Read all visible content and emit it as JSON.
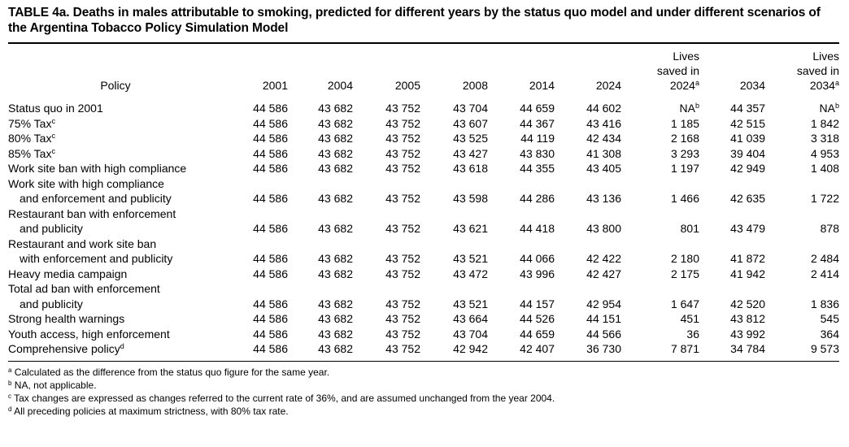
{
  "title": {
    "line1": "TABLE 4a. Deaths in males attributable to smoking, predicted for different years by the status quo model and under different scenarios of",
    "line2": "the Argentina Tobacco Policy Simulation Model"
  },
  "columns": {
    "policy": "Policy",
    "y2001": "2001",
    "y2004": "2004",
    "y2005": "2005",
    "y2008": "2008",
    "y2014": "2014",
    "y2024": "2024",
    "saved2024_line1": "Lives",
    "saved2024_line2": "saved in",
    "saved2024_line3": "2024",
    "saved2024_sup": "a",
    "y2034": "2034",
    "saved2034_line1": "Lives",
    "saved2034_line2": "saved in",
    "saved2034_line3": "2034",
    "saved2034_sup": "a"
  },
  "rows": [
    {
      "policy": [
        "Status quo in 2001"
      ],
      "sup": "",
      "v": [
        "44 586",
        "43 682",
        "43 752",
        "43 704",
        "44 659",
        "44 602",
        "NA",
        "44 357",
        "NA"
      ],
      "na_sup": "b"
    },
    {
      "policy": [
        "75% Tax"
      ],
      "sup": "c",
      "v": [
        "44 586",
        "43 682",
        "43 752",
        "43 607",
        "44 367",
        "43 416",
        "1 185",
        "42 515",
        "1 842"
      ]
    },
    {
      "policy": [
        "80% Tax"
      ],
      "sup": "c",
      "v": [
        "44 586",
        "43 682",
        "43 752",
        "43 525",
        "44 119",
        "42 434",
        "2 168",
        "41 039",
        "3 318"
      ]
    },
    {
      "policy": [
        "85% Tax"
      ],
      "sup": "c",
      "v": [
        "44 586",
        "43 682",
        "43 752",
        "43 427",
        "43 830",
        "41 308",
        "3 293",
        "39 404",
        "4 953"
      ]
    },
    {
      "policy": [
        "Work site ban with high compliance"
      ],
      "sup": "",
      "v": [
        "44 586",
        "43 682",
        "43 752",
        "43 618",
        "44 355",
        "43 405",
        "1 197",
        "42 949",
        "1 408"
      ]
    },
    {
      "policy": [
        "Work site with high compliance",
        "and enforcement and publicity"
      ],
      "sup": "",
      "v": [
        "44 586",
        "43 682",
        "43 752",
        "43 598",
        "44 286",
        "43 136",
        "1 466",
        "42 635",
        "1 722"
      ]
    },
    {
      "policy": [
        "Restaurant ban with enforcement",
        "and publicity"
      ],
      "sup": "",
      "v": [
        "44 586",
        "43 682",
        "43 752",
        "43 621",
        "44 418",
        "43 800",
        "801",
        "43 479",
        "878"
      ]
    },
    {
      "policy": [
        "Restaurant and work site ban",
        "with enforcement and publicity"
      ],
      "sup": "",
      "v": [
        "44 586",
        "43 682",
        "43 752",
        "43 521",
        "44 066",
        "42 422",
        "2 180",
        "41 872",
        "2 484"
      ]
    },
    {
      "policy": [
        "Heavy media campaign"
      ],
      "sup": "",
      "v": [
        "44 586",
        "43 682",
        "43 752",
        "43 472",
        "43 996",
        "42 427",
        "2 175",
        "41 942",
        "2 414"
      ]
    },
    {
      "policy": [
        "Total ad ban with enforcement",
        "and publicity"
      ],
      "sup": "",
      "v": [
        "44 586",
        "43 682",
        "43 752",
        "43 521",
        "44 157",
        "42 954",
        "1 647",
        "42 520",
        "1 836"
      ]
    },
    {
      "policy": [
        "Strong health warnings"
      ],
      "sup": "",
      "v": [
        "44 586",
        "43 682",
        "43 752",
        "43 664",
        "44 526",
        "44 151",
        "451",
        "43 812",
        "545"
      ]
    },
    {
      "policy": [
        "Youth access, high enforcement"
      ],
      "sup": "",
      "v": [
        "44 586",
        "43 682",
        "43 752",
        "43 704",
        "44 659",
        "44 566",
        "36",
        "43 992",
        "364"
      ]
    },
    {
      "policy": [
        "Comprehensive policy"
      ],
      "sup": "d",
      "v": [
        "44 586",
        "43 682",
        "43 752",
        "42 942",
        "42 407",
        "36 730",
        "7 871",
        "34 784",
        "9 573"
      ]
    }
  ],
  "footnotes": [
    {
      "mark": "a",
      "text": "Calculated as the difference from the status quo figure for the same year."
    },
    {
      "mark": "b",
      "text": "NA, not applicable."
    },
    {
      "mark": "c",
      "text": "Tax changes are expressed as changes referred to the current rate of 36%, and are assumed unchanged from the year 2004."
    },
    {
      "mark": "d",
      "text": "All preceding policies at maximum strictness, with 80% tax rate."
    }
  ]
}
